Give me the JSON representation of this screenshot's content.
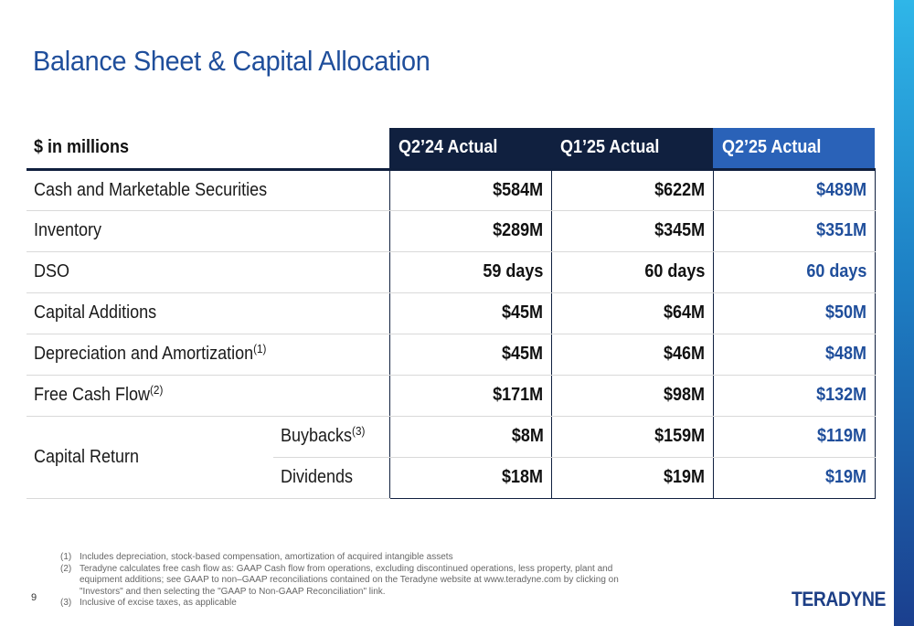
{
  "title": "Balance Sheet & Capital Allocation",
  "table": {
    "unit_label": "$ in millions",
    "columns": [
      "Q2’24 Actual",
      "Q1’25 Actual",
      "Q2’25 Actual"
    ],
    "rows": [
      {
        "label": "Cash and Marketable Securities",
        "sup": "",
        "values": [
          "$584M",
          "$622M",
          "$489M"
        ]
      },
      {
        "label": "Inventory",
        "sup": "",
        "values": [
          "$289M",
          "$345M",
          "$351M"
        ]
      },
      {
        "label": "DSO",
        "sup": "",
        "values": [
          "59 days",
          "60 days",
          "60 days"
        ]
      },
      {
        "label": "Capital Additions",
        "sup": "",
        "values": [
          "$45M",
          "$64M",
          "$50M"
        ]
      },
      {
        "label": "Depreciation and Amortization",
        "sup": "(1)",
        "values": [
          "$45M",
          "$46M",
          "$48M"
        ]
      },
      {
        "label": "Free Cash Flow",
        "sup": "(2)",
        "values": [
          "$171M",
          "$98M",
          "$132M"
        ]
      }
    ],
    "capital_return": {
      "label": "Capital Return",
      "buybacks": {
        "label": "Buybacks",
        "sup": "(3)",
        "values": [
          "$8M",
          "$159M",
          "$119M"
        ]
      },
      "dividends": {
        "label": "Dividends",
        "values": [
          "$18M",
          "$19M",
          "$19M"
        ]
      }
    }
  },
  "footnotes": [
    {
      "num": "(1)",
      "text": "Includes depreciation, stock-based compensation, amortization of acquired intangible assets"
    },
    {
      "num": "(2)",
      "text": "Teradyne calculates free cash flow as: GAAP Cash flow from operations, excluding discontinued operations, less property, plant and equipment additions; see GAAP to non–GAAP reconciliations contained on the Teradyne website at www.teradyne.com by clicking on \"Investors\" and then selecting the \"GAAP to Non-GAAP Reconciliation\" link."
    },
    {
      "num": "(3)",
      "text": "Inclusive of excise taxes, as applicable"
    }
  ],
  "page_number": "9",
  "logo_text": "TERADYNE",
  "colors": {
    "title": "#1f4e9b",
    "header_dark": "#10203f",
    "header_current": "#2a62b8",
    "current_value": "#1f4e9b"
  }
}
